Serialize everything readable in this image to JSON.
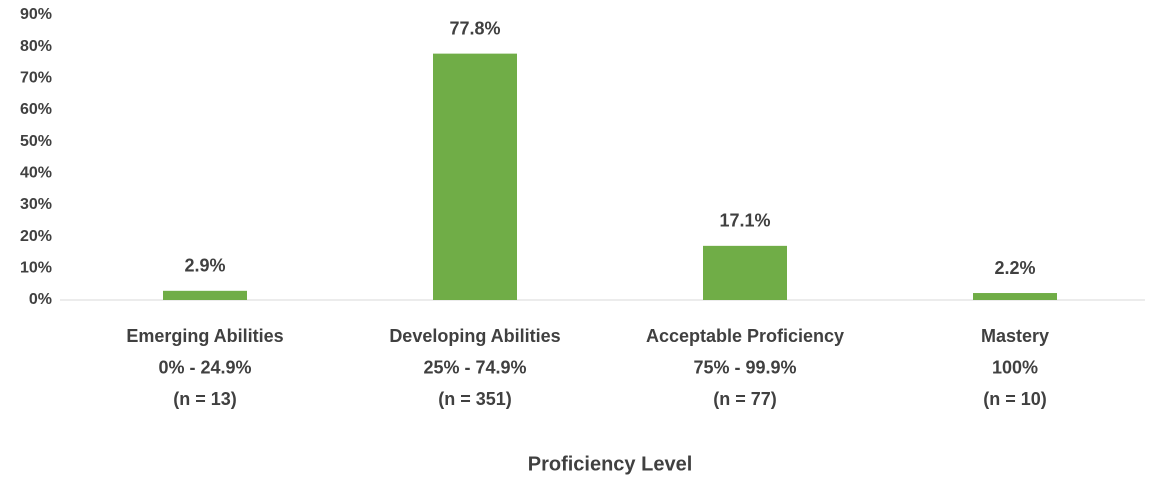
{
  "chart_data": {
    "type": "bar",
    "x_label": "Proficiency Level",
    "categories": [
      [
        "Emerging Abilities",
        "0% - 24.9%",
        "(n = 13)"
      ],
      [
        "Developing Abilities",
        "25% - 74.9%",
        "(n = 351)"
      ],
      [
        "Acceptable Proficiency",
        "75% - 99.9%",
        "(n = 77)"
      ],
      [
        "Mastery",
        "100%",
        "(n = 10)"
      ]
    ],
    "values": [
      2.9,
      77.8,
      17.1,
      2.2
    ],
    "value_labels": [
      "2.9%",
      "77.8%",
      "17.1%",
      "2.2%"
    ],
    "color": "#70ad47",
    "ylim": [
      0,
      90
    ],
    "yticks": [
      {
        "value": 0,
        "label": "0%"
      },
      {
        "value": 10,
        "label": "10%"
      },
      {
        "value": 20,
        "label": "20%"
      },
      {
        "value": 30,
        "label": "30%"
      },
      {
        "value": 40,
        "label": "40%"
      },
      {
        "value": 50,
        "label": "50%"
      },
      {
        "value": 60,
        "label": "60%"
      },
      {
        "value": 70,
        "label": "70%"
      },
      {
        "value": 80,
        "label": "80%"
      },
      {
        "value": 90,
        "label": "90%"
      }
    ],
    "grid": false
  }
}
